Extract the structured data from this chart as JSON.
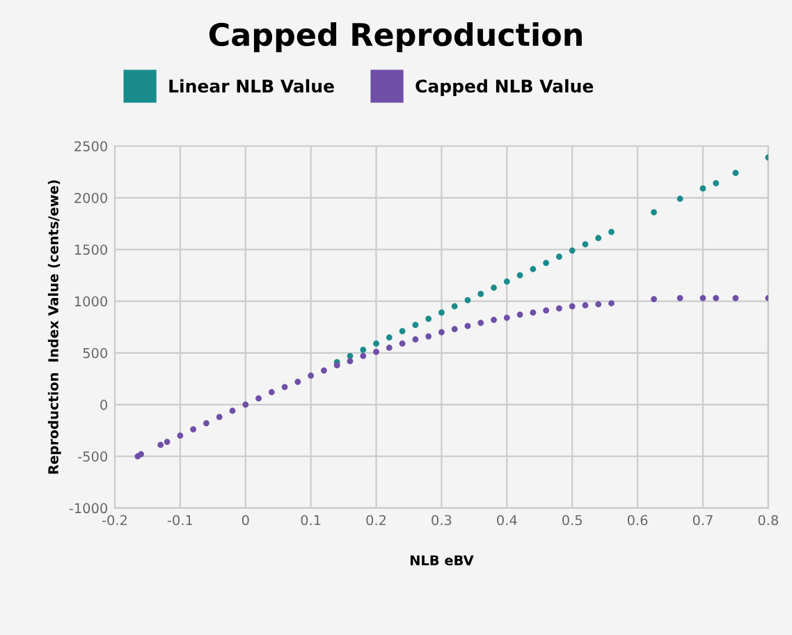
{
  "chart_data": {
    "type": "scatter",
    "title": "Capped Reproduction",
    "xlabel": "NLB eBV",
    "ylabel": "Reproduction  Index Value (cents/ewe)",
    "xlim": [
      -0.2,
      0.8
    ],
    "xticks": [
      -0.2,
      -0.1,
      0,
      0.1,
      0.2,
      0.3,
      0.4,
      0.5,
      0.6,
      0.7,
      0.8
    ],
    "ylim": [
      -1000,
      2500
    ],
    "yticks": [
      -1000,
      -500,
      0,
      500,
      1000,
      1500,
      2000,
      2500
    ],
    "grid": true,
    "legend": "top left",
    "marker": "circle",
    "series": [
      {
        "name": "Linear NLB Value",
        "color": "#1a8c8c",
        "x": [
          0.14,
          0.16,
          0.18,
          0.2,
          0.22,
          0.24,
          0.26,
          0.28,
          0.3,
          0.32,
          0.34,
          0.36,
          0.38,
          0.4,
          0.42,
          0.44,
          0.46,
          0.48,
          0.5,
          0.52,
          0.54,
          0.56,
          0.625,
          0.665,
          0.7,
          0.72,
          0.75,
          0.8
        ],
        "values": [
          410,
          470,
          530,
          590,
          650,
          710,
          770,
          830,
          890,
          950,
          1010,
          1070,
          1130,
          1190,
          1250,
          1310,
          1370,
          1430,
          1490,
          1550,
          1610,
          1670,
          1860,
          1990,
          2090,
          2140,
          2240,
          2390
        ]
      },
      {
        "name": "Capped NLB Value",
        "color": "#6f4fa8",
        "x": [
          -0.165,
          -0.16,
          -0.13,
          -0.12,
          -0.1,
          -0.08,
          -0.06,
          -0.04,
          -0.02,
          0,
          0.02,
          0.04,
          0.06,
          0.08,
          0.1,
          0.12,
          0.14,
          0.16,
          0.18,
          0.2,
          0.22,
          0.24,
          0.26,
          0.28,
          0.3,
          0.32,
          0.34,
          0.36,
          0.38,
          0.4,
          0.42,
          0.44,
          0.46,
          0.48,
          0.5,
          0.52,
          0.54,
          0.56,
          0.625,
          0.665,
          0.7,
          0.72,
          0.75,
          0.8
        ],
        "values": [
          -500,
          -480,
          -390,
          -360,
          -300,
          -240,
          -180,
          -120,
          -60,
          0,
          60,
          120,
          170,
          220,
          280,
          330,
          380,
          420,
          470,
          510,
          550,
          590,
          630,
          660,
          700,
          730,
          760,
          790,
          820,
          840,
          870,
          890,
          910,
          930,
          950,
          960,
          970,
          980,
          1020,
          1030,
          1030,
          1030,
          1030,
          1030
        ]
      }
    ]
  }
}
